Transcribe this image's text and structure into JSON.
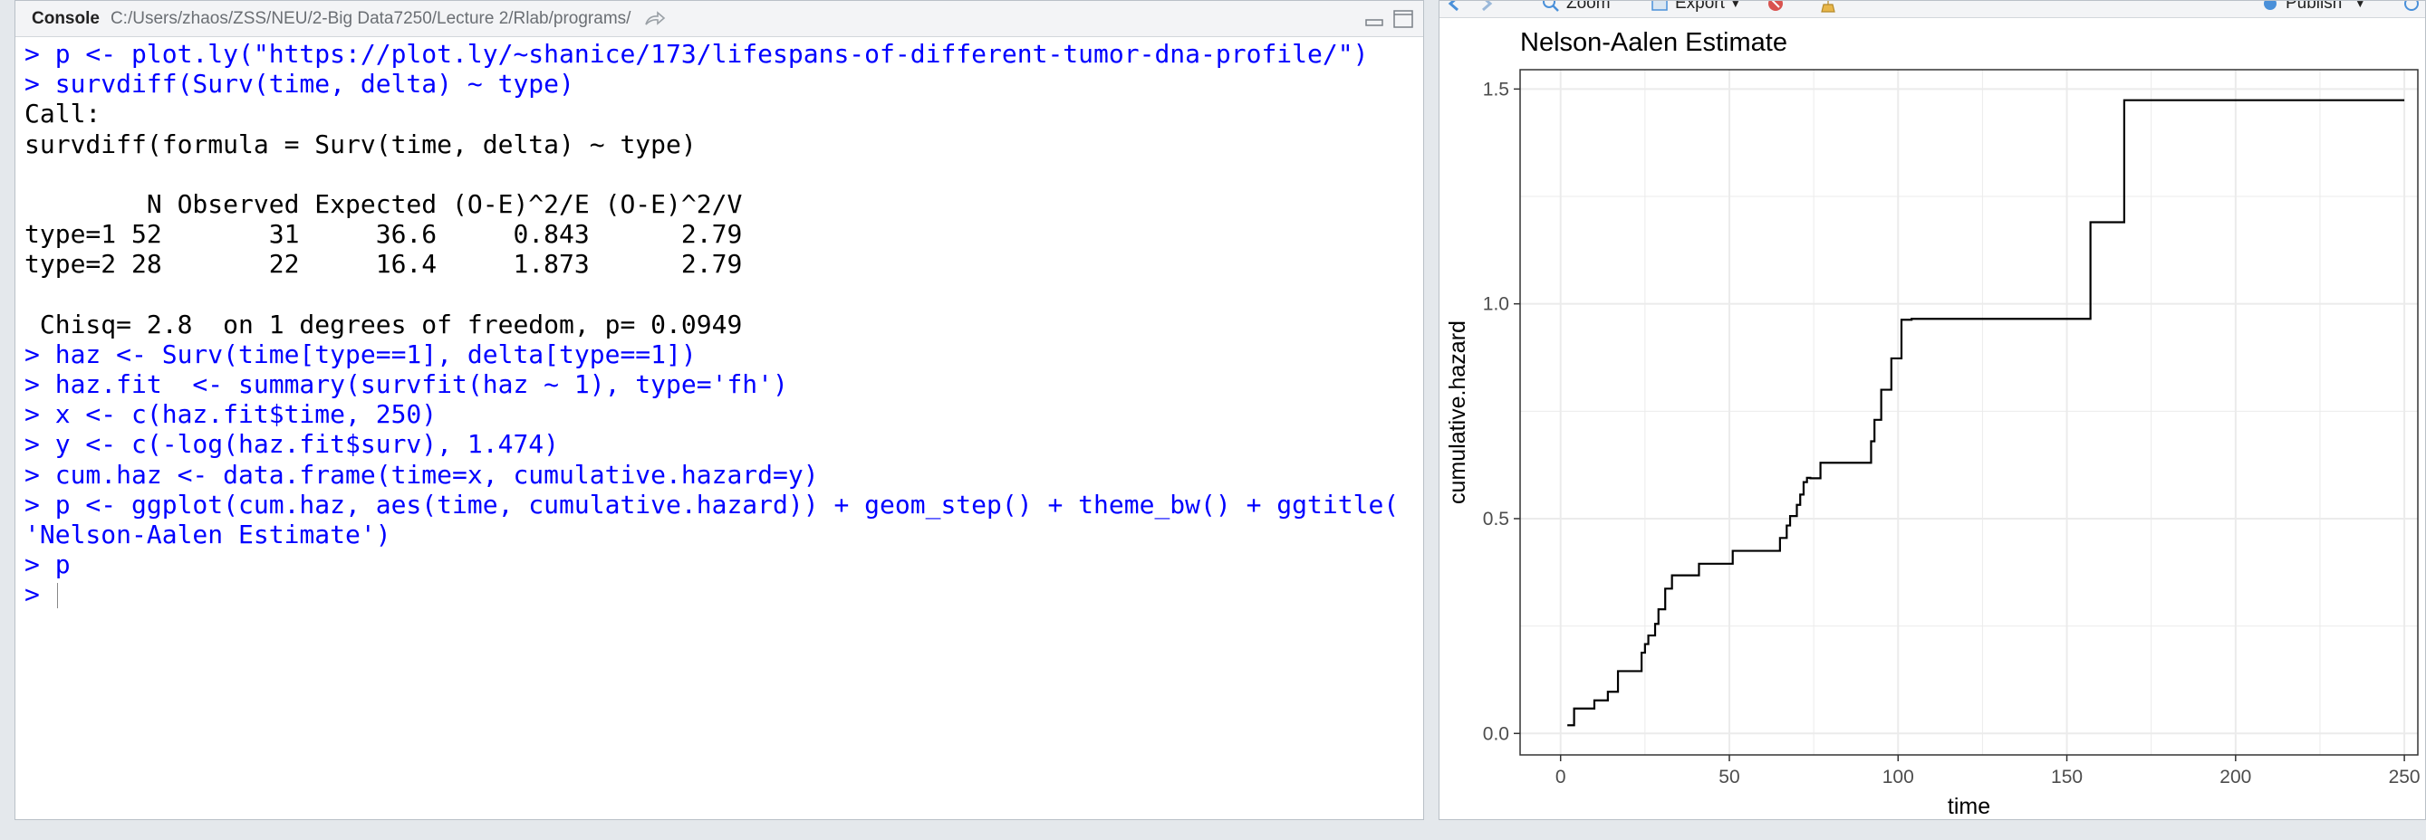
{
  "console": {
    "tab_label": "Console",
    "path": "C:/Users/zhaos/ZSS/NEU/2-Big Data7250/Lecture 2/Rlab/programs/",
    "lines": [
      {
        "type": "input",
        "text": "> p <- plot.ly(\"https://plot.ly/~shanice/173/lifespans-of-different-tumor-dna-profile/\")"
      },
      {
        "type": "input",
        "text": "> survdiff(Surv(time, delta) ~ type)"
      },
      {
        "type": "output",
        "text": "Call:"
      },
      {
        "type": "output",
        "text": "survdiff(formula = Surv(time, delta) ~ type)"
      },
      {
        "type": "output",
        "text": ""
      },
      {
        "type": "output",
        "text": "        N Observed Expected (O-E)^2/E (O-E)^2/V"
      },
      {
        "type": "output",
        "text": "type=1 52       31     36.6     0.843      2.79"
      },
      {
        "type": "output",
        "text": "type=2 28       22     16.4     1.873      2.79"
      },
      {
        "type": "output",
        "text": ""
      },
      {
        "type": "output",
        "text": " Chisq= 2.8  on 1 degrees of freedom, p= 0.0949"
      },
      {
        "type": "input",
        "text": "> haz <- Surv(time[type==1], delta[type==1])"
      },
      {
        "type": "input",
        "text": "> haz.fit  <- summary(survfit(haz ~ 1), type='fh')"
      },
      {
        "type": "input",
        "text": "> x <- c(haz.fit$time, 250)"
      },
      {
        "type": "input",
        "text": "> y <- c(-log(haz.fit$surv), 1.474)"
      },
      {
        "type": "input",
        "text": "> cum.haz <- data.frame(time=x, cumulative.hazard=y)"
      },
      {
        "type": "input",
        "text": "> p <- ggplot(cum.haz, aes(time, cumulative.hazard)) + geom_step() + theme_bw() + ggtitle("
      },
      {
        "type": "input",
        "text": "'Nelson-Aalen Estimate')"
      },
      {
        "type": "input",
        "text": "> p"
      }
    ],
    "prompt": ">"
  },
  "plot_toolbar": {
    "zoom_label": "Zoom",
    "export_label": "Export",
    "publish_label": "Publish"
  },
  "colors": {
    "console_input": "#0000ff",
    "console_output": "#000000",
    "grid": "#ebebeb",
    "panel_border": "#333333",
    "step_line": "#000000"
  },
  "chart_data": {
    "type": "line",
    "title": "Nelson-Aalen Estimate",
    "xlabel": "time",
    "ylabel": "cumulative.hazard",
    "xlim": [
      -12,
      254
    ],
    "ylim": [
      -0.05,
      1.545
    ],
    "x_ticks": [
      0,
      50,
      100,
      150,
      200,
      250
    ],
    "y_ticks": [
      0.0,
      0.5,
      1.0,
      1.5
    ],
    "x_tick_labels": [
      "0",
      "50",
      "100",
      "150",
      "200",
      "250"
    ],
    "y_tick_labels": [
      "0.0",
      "0.5",
      "1.0",
      "1.5"
    ],
    "grid": true,
    "step": "hv",
    "series": [
      {
        "x": [
          2,
          4,
          10,
          14,
          17,
          24,
          25,
          26,
          28,
          29,
          31,
          33,
          41,
          51,
          65,
          67,
          68,
          70,
          71,
          72,
          73,
          74,
          77,
          92,
          93,
          95,
          98,
          101,
          104,
          157,
          167,
          250
        ],
        "y": [
          0.019,
          0.058,
          0.077,
          0.097,
          0.145,
          0.188,
          0.208,
          0.228,
          0.255,
          0.289,
          0.337,
          0.368,
          0.395,
          0.425,
          0.455,
          0.484,
          0.506,
          0.532,
          0.556,
          0.585,
          0.595,
          0.594,
          0.63,
          0.68,
          0.73,
          0.8,
          0.873,
          0.963,
          0.965,
          1.19,
          1.474,
          1.474
        ]
      }
    ]
  }
}
